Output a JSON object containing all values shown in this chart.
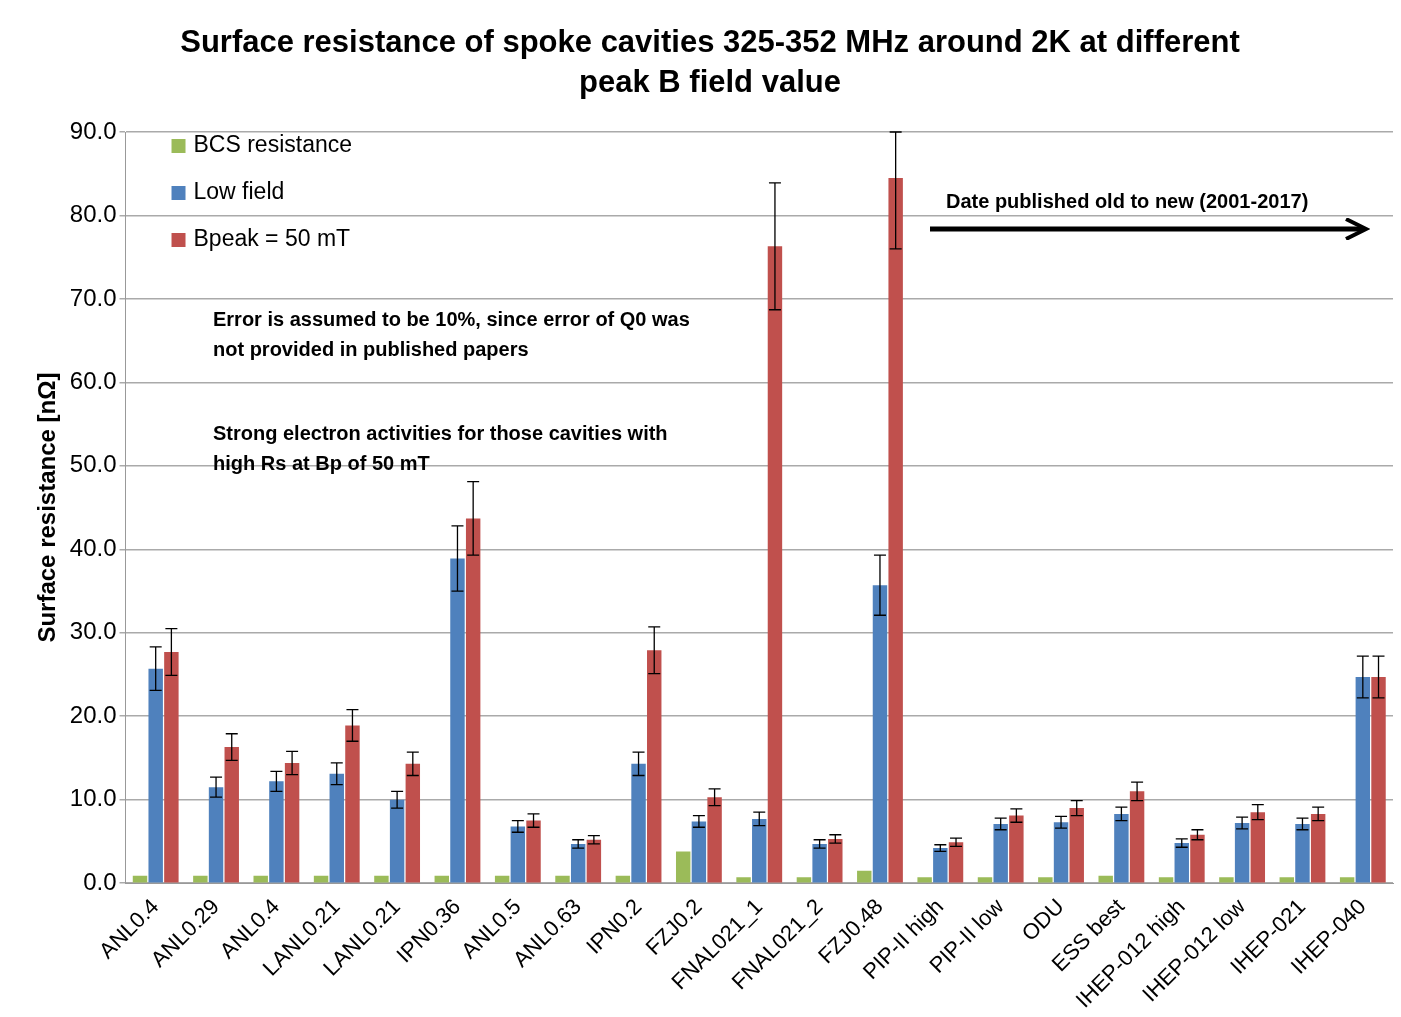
{
  "chart_data": {
    "type": "bar",
    "title": "Surface resistance of spoke cavities 325-352 MHz around 2K at different peak B field value",
    "ylabel": "Surface resistance [nΩ]",
    "annotations": [
      "Error is assumed to be 10%, since error of Q0 was not provided in published papers",
      "Strong electron activities for those cavities with high Rs at Bp of 50 mT",
      "Date published old to new (2001-2017)"
    ],
    "categories": [
      "ANL0.4",
      "ANL0.29",
      "ANL0.4",
      "LANL0.21",
      "LANL0.21",
      "IPN0.36",
      "ANL0.5",
      "ANL0.63",
      "IPN0.2",
      "FZJ0.2",
      "FNAL021_1",
      "FNAL021_2",
      "FZJ0.48",
      "PIP-II high",
      "PIP-II low",
      "ODU",
      "ESS best",
      "IHEP-012 high",
      "IHEP-012 low",
      "IHEP-021",
      "IHEP-040"
    ],
    "series": [
      {
        "name": "BCS resistance",
        "color": "#9bbb59",
        "values": [
          0.9,
          0.9,
          0.9,
          0.9,
          0.9,
          0.9,
          0.9,
          0.9,
          0.9,
          3.8,
          0.7,
          0.7,
          1.5,
          0.7,
          0.7,
          0.7,
          0.9,
          0.7,
          0.7,
          0.7,
          0.7
        ]
      },
      {
        "name": "Low field",
        "color": "#4f81bd",
        "values": [
          25.7,
          11.5,
          12.2,
          13.1,
          10.0,
          38.9,
          6.8,
          4.7,
          14.3,
          7.4,
          7.7,
          4.7,
          35.7,
          4.2,
          7.1,
          7.3,
          8.3,
          4.8,
          7.2,
          7.1,
          24.7
        ],
        "errors": [
          2.6,
          1.2,
          1.2,
          1.3,
          1.0,
          3.9,
          0.7,
          0.5,
          1.4,
          0.7,
          0.8,
          0.5,
          3.6,
          0.4,
          0.7,
          0.7,
          0.8,
          0.5,
          0.7,
          0.7,
          2.5
        ]
      },
      {
        "name": "Bpeak = 50 mT",
        "color": "#c0504d",
        "values": [
          27.7,
          16.3,
          14.4,
          18.9,
          14.3,
          43.7,
          7.5,
          5.2,
          27.9,
          10.3,
          76.3,
          5.3,
          84.5,
          4.9,
          8.1,
          9.0,
          11.0,
          5.8,
          8.5,
          8.3,
          24.7
        ],
        "errors": [
          2.8,
          1.6,
          1.4,
          1.9,
          1.4,
          4.4,
          0.8,
          0.5,
          2.8,
          1.0,
          7.6,
          0.5,
          [
            76.0,
            90.0
          ],
          0.5,
          0.8,
          0.9,
          1.1,
          0.6,
          0.9,
          0.8,
          2.5
        ]
      }
    ],
    "ylim": [
      0,
      90
    ],
    "yticks": [
      {
        "value": 0,
        "label": "0.0"
      },
      {
        "value": 10,
        "label": "10.0"
      },
      {
        "value": 20,
        "label": "20.0"
      },
      {
        "value": 30,
        "label": "30.0"
      },
      {
        "value": 40,
        "label": "40.0"
      },
      {
        "value": 50,
        "label": "50.0"
      },
      {
        "value": 60,
        "label": "60.0"
      },
      {
        "value": 70,
        "label": "70.0"
      },
      {
        "value": 80,
        "label": "80.0"
      },
      {
        "value": 90,
        "label": "90.0"
      }
    ],
    "grid": "y",
    "legend": "top left"
  }
}
